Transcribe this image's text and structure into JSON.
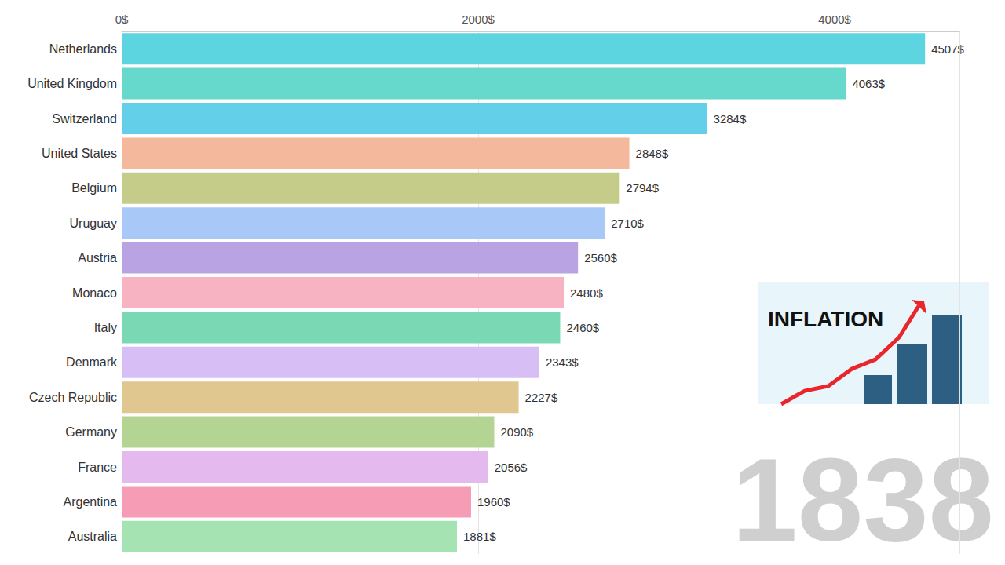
{
  "chart_data": {
    "type": "bar",
    "orientation": "horizontal",
    "categories": [
      "Netherlands",
      "United Kingdom",
      "Switzerland",
      "United States",
      "Belgium",
      "Uruguay",
      "Austria",
      "Monaco",
      "Italy",
      "Denmark",
      "Czech Republic",
      "Germany",
      "France",
      "Argentina",
      "Australia"
    ],
    "values": [
      4507,
      4063,
      3284,
      2848,
      2794,
      2710,
      2560,
      2480,
      2460,
      2343,
      2227,
      2090,
      2056,
      1960,
      1881
    ],
    "value_labels": [
      "4507$",
      "4063$",
      "3284$",
      "2848$",
      "2794$",
      "2710$",
      "2560$",
      "2480$",
      "2460$",
      "2343$",
      "2227$",
      "2090$",
      "2056$",
      "1960$",
      "1881$"
    ],
    "colors": [
      "#5dd5e0",
      "#66d9cc",
      "#63cfe8",
      "#f4b89c",
      "#c5cc8a",
      "#a8c8f8",
      "#b9a3e3",
      "#f8b3c2",
      "#7bd8b5",
      "#d7bff5",
      "#e0c78f",
      "#b4d494",
      "#e3b9ee",
      "#f79cb5",
      "#a6e3b3"
    ],
    "xlim": [
      0,
      4700
    ],
    "xticks": [
      {
        "value": 0,
        "label": "0$"
      },
      {
        "value": 2000,
        "label": "2000$"
      },
      {
        "value": 4000,
        "label": "4000$"
      }
    ],
    "grid": true,
    "data_labels": true,
    "annotations": [
      {
        "text": "INFLATION"
      },
      {
        "text": "1838"
      }
    ]
  }
}
